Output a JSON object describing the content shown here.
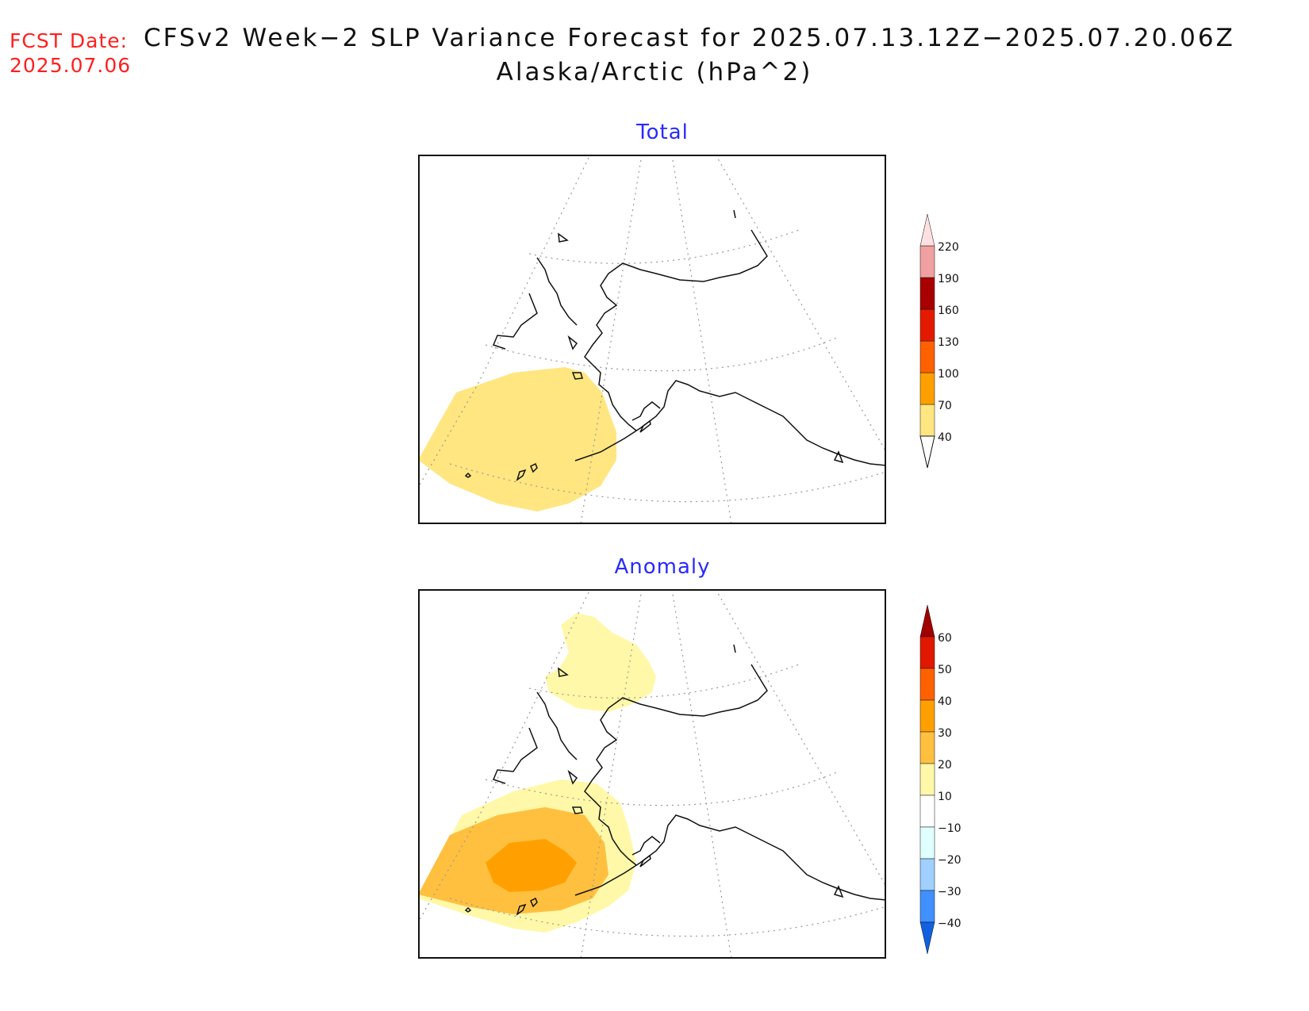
{
  "header": {
    "fcst_label": "FCST Date:",
    "fcst_date": "2025.07.06",
    "title_line1": "CFSv2 Week−2 SLP Variance Forecast for 2025.07.13.12Z−2025.07.20.06Z",
    "title_line2": "Alaska/Arctic (hPa^2)"
  },
  "panels": {
    "total": {
      "title": "Total"
    },
    "anomaly": {
      "title": "Anomaly"
    }
  },
  "colorbars": {
    "total": {
      "labels": [
        "40",
        "70",
        "100",
        "130",
        "160",
        "190",
        "220"
      ],
      "colors": [
        "#ffe680",
        "#ffa000",
        "#ff6000",
        "#e41a00",
        "#a80000",
        "#f0a0a0",
        "#ffe0e0"
      ]
    },
    "anomaly": {
      "labels": [
        "60",
        "50",
        "40",
        "30",
        "20",
        "10",
        "−10",
        "−20",
        "−30",
        "−40"
      ],
      "colors": [
        "#a00000",
        "#e01800",
        "#ff6000",
        "#ffa000",
        "#ffc040",
        "#fff8a8",
        "#ffffff",
        "#e0ffff",
        "#a0d0ff",
        "#4090ff",
        "#1060e0"
      ]
    }
  }
}
